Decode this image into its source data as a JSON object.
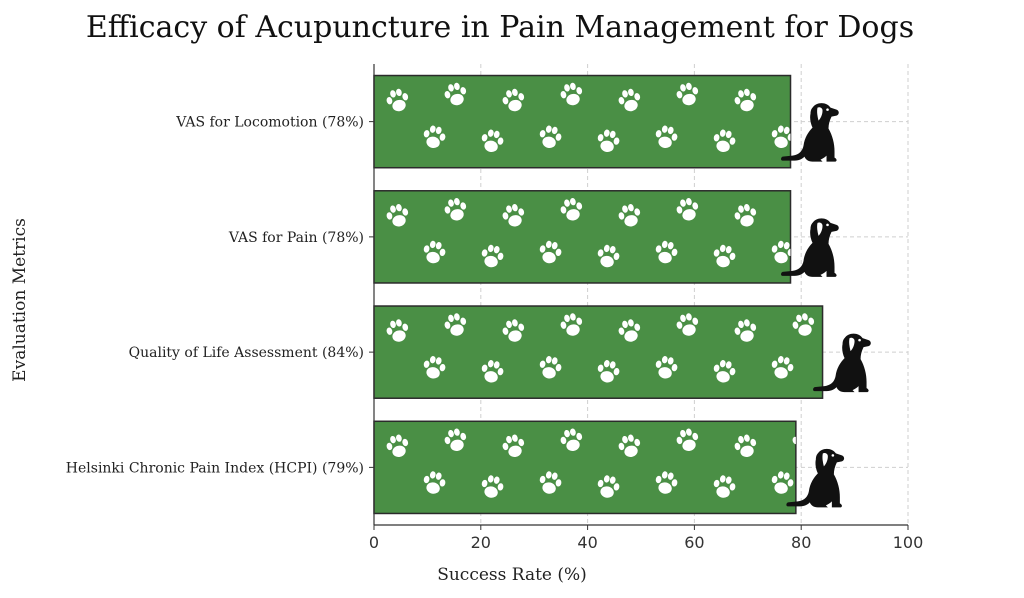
{
  "chart_data": {
    "type": "bar",
    "orientation": "horizontal",
    "title": "Efficacy of Acupuncture in Pain Management for Dogs",
    "xlabel": "Success Rate (%)",
    "ylabel": "Evaluation Metrics",
    "xlim": [
      0,
      100
    ],
    "xticks": [
      "0",
      "20",
      "40",
      "60",
      "80",
      "100"
    ],
    "categories": [
      "VAS for Locomotion (78%)",
      "VAS for Pain (78%)",
      "Quality of Life Assessment (84%)",
      "Helsinki Chronic Pain Index (HCPI) (79%)"
    ],
    "values": [
      78,
      78,
      84,
      79
    ],
    "grid": true,
    "bar_color": "#4a8f45",
    "bar_edge_color": "#2b2b2b",
    "pattern_icon": "paw-print-icon",
    "bar_end_icon": "dog-silhouette-icon"
  }
}
